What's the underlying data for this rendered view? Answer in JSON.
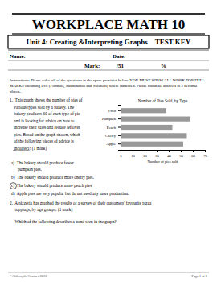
{
  "title": "WORKPLACE MATH 10",
  "subtitle": "Unit 4: Creating &Interpreting Graphs    TEST KEY",
  "name_label": "Name:",
  "date_label": "Date:",
  "mark_label": "Mark:",
  "mark_value": "/51",
  "percent": "%",
  "instructions": "Instructions: Please solve all of the questions in the space provided below. YOU MUST SHOW ALL WORK FOR FULL MARKS including FSS (Formula, Substitution and Solution) where indicated. Please round all answers to 2 decimal places.",
  "q1_lines": [
    "1.  This graph shows the number of pies of",
    "    various types sold by a bakery. The",
    "    bakery produces 60 of each type of pie",
    "    and is looking for advice on how to",
    "    increase their sales and reduce leftover",
    "    pies. Based on the graph shown, which",
    "    of the following pieces of advice is",
    "    ̲i̲n̲c̲o̲r̲r̲e̲c̲t̲? (1 mark)"
  ],
  "q1_options": [
    [
      "a)  The bakery should produce fewer",
      "      pumpkin pies."
    ],
    [
      "b)  The bakery should produce more cherry pies."
    ],
    [
      "c)  The bakery should produce more peach pies"
    ],
    [
      "d)  Apple pies are very popular but do not need any more production."
    ]
  ],
  "q2_paragraphs": [
    [
      "2.  A pizzeria has graphed the results of a survey of their customers’ favourite pizza",
      "     toppings, by age groups. (1 mark)"
    ],
    [
      "     Which of the following describes a trend seen in the graph?"
    ]
  ],
  "footer_left": "©Aldernyde Courses 2023",
  "footer_right": "Page 1 of 8",
  "chart_data": {
    "type": "bar",
    "orientation": "horizontal",
    "title": "Number of Pies Sold, by Type",
    "xlabel": "Number of pies sold",
    "categories": [
      "Apple",
      "Cherry",
      "Peach",
      "Pumpkin",
      "Fruit"
    ],
    "values": [
      52,
      55,
      43,
      58,
      38
    ],
    "color": "#999999",
    "xlim": [
      0,
      70
    ],
    "xticks": [
      0,
      10,
      20,
      30,
      40,
      50,
      60,
      70
    ],
    "grid": false
  }
}
